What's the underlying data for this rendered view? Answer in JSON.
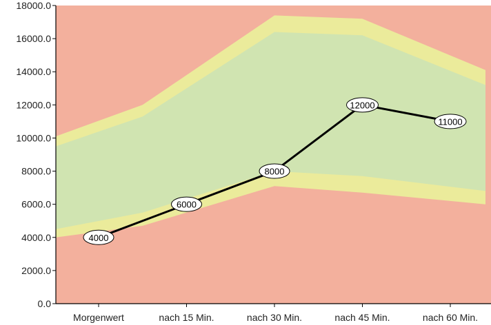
{
  "chart_data": {
    "type": "line",
    "categories": [
      "Morgenwert",
      "nach 15 Min.",
      "nach 30 Min.",
      "nach 45 Min.",
      "nach 60 Min."
    ],
    "series": [
      {
        "values": [
          4000,
          6000,
          8000,
          12000,
          11000
        ],
        "color": "#000000"
      }
    ],
    "data_labels": [
      "4000",
      "6000",
      "8000",
      "12000",
      "11000"
    ],
    "ylim": [
      0,
      18000
    ],
    "yticks": [
      0,
      2000,
      4000,
      6000,
      8000,
      10000,
      12000,
      14000,
      16000,
      18000
    ],
    "ytick_labels": [
      "0.0",
      "2000.0",
      "4000.0",
      "6000.0",
      "8000.0",
      "10000.0",
      "12000.0",
      "14000.0",
      "16000.0",
      "18000.0"
    ],
    "grid": false,
    "background_bands": {
      "x_points": [
        0,
        0.5,
        2,
        3,
        4.4
      ],
      "green_upper": [
        9500,
        11300,
        16400,
        16200,
        13200
      ],
      "yellow_upper": [
        10100,
        12000,
        17400,
        17200,
        14100
      ],
      "green_lower": [
        4500,
        5500,
        8000,
        7700,
        6800
      ],
      "yellow_lower": [
        4000,
        4700,
        7100,
        6700,
        6000
      ],
      "colors": {
        "outer": "#f3b09d",
        "yellow": "#ebeb9b",
        "green": "#d0e4b1"
      }
    }
  }
}
